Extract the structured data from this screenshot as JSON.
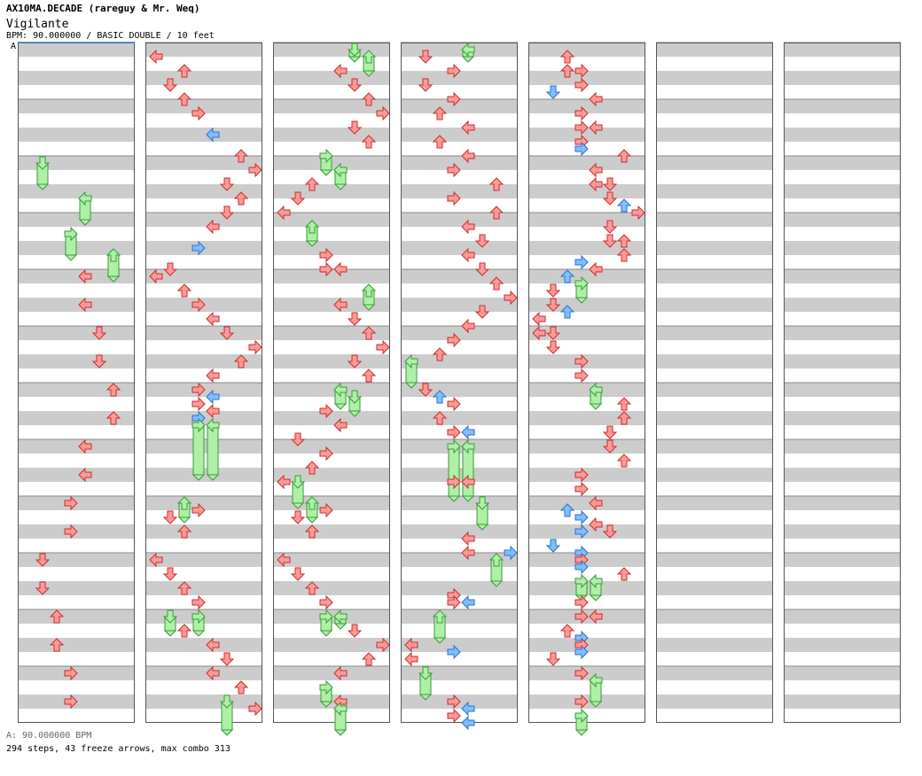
{
  "header": {
    "artist_line": "AX10MA.DECADE (rareguy & Mr. Weq)",
    "title": "Vigilante",
    "meta": "BPM: 90.000000 / BASIC DOUBLE / 10 feet"
  },
  "bpm_marker": {
    "label": "A"
  },
  "footer": {
    "bpm": "A: 90.000000 BPM",
    "stats": "294 steps, 43 freeze arrows, max combo 313"
  },
  "colors": {
    "tap": "#ff9a9a",
    "tap_stroke": "#cc2b2b",
    "blue": "#7fbfff",
    "blue_stroke": "#2b6fcc",
    "freeze": "#aef0a6",
    "freeze_stroke": "#3a9a3a",
    "pink": "#f6b8f0",
    "stripe": "#cccccc"
  },
  "chart_data": {
    "type": "step-chart",
    "mode": "BASIC DOUBLE",
    "columns": 7,
    "measures_per_column": 12,
    "lanes": [
      "P1-left",
      "P1-down",
      "P1-up",
      "P1-right",
      "P2-left",
      "P2-down",
      "P2-up",
      "P2-right"
    ],
    "notes": [
      {
        "c": 0,
        "b": 8,
        "l": 1,
        "t": "freeze",
        "len": 1.5
      },
      {
        "c": 0,
        "b": 10.5,
        "l": 4,
        "t": "freeze",
        "len": 1.5
      },
      {
        "c": 0,
        "b": 13,
        "l": 3,
        "t": "freeze",
        "len": 1.5
      },
      {
        "c": 0,
        "b": 14.5,
        "l": 6,
        "t": "freeze",
        "len": 1.5
      },
      {
        "c": 0,
        "b": 16,
        "l": 4
      },
      {
        "c": 0,
        "b": 18,
        "l": 4
      },
      {
        "c": 0,
        "b": 20,
        "l": 5
      },
      {
        "c": 0,
        "b": 22,
        "l": 5
      },
      {
        "c": 0,
        "b": 24,
        "l": 6
      },
      {
        "c": 0,
        "b": 26,
        "l": 6
      },
      {
        "c": 0,
        "b": 28,
        "l": 4
      },
      {
        "c": 0,
        "b": 30,
        "l": 4
      },
      {
        "c": 0,
        "b": 32,
        "l": 3
      },
      {
        "c": 0,
        "b": 34,
        "l": 3
      },
      {
        "c": 0,
        "b": 36,
        "l": 1
      },
      {
        "c": 0,
        "b": 38,
        "l": 1
      },
      {
        "c": 0,
        "b": 40,
        "l": 2
      },
      {
        "c": 0,
        "b": 42,
        "l": 2
      },
      {
        "c": 0,
        "b": 44,
        "l": 3
      },
      {
        "c": 0,
        "b": 46,
        "l": 3
      },
      {
        "c": 1,
        "b": 0.5,
        "l": 0
      },
      {
        "c": 1,
        "b": 1.5,
        "l": 2
      },
      {
        "c": 1,
        "b": 2.5,
        "l": 1
      },
      {
        "c": 1,
        "b": 3.5,
        "l": 2
      },
      {
        "c": 1,
        "b": 4.5,
        "l": 3
      },
      {
        "c": 1,
        "b": 6,
        "l": 4,
        "t": "blue"
      },
      {
        "c": 1,
        "b": 7.5,
        "l": 6
      },
      {
        "c": 1,
        "b": 8.5,
        "l": 7
      },
      {
        "c": 1,
        "b": 9.5,
        "l": 5
      },
      {
        "c": 1,
        "b": 10.5,
        "l": 6
      },
      {
        "c": 1,
        "b": 11.5,
        "l": 5
      },
      {
        "c": 1,
        "b": 12.5,
        "l": 4
      },
      {
        "c": 1,
        "b": 14,
        "l": 3,
        "t": "blue"
      },
      {
        "c": 1,
        "b": 15.5,
        "l": 1
      },
      {
        "c": 1,
        "b": 16,
        "l": 0
      },
      {
        "c": 1,
        "b": 17,
        "l": 2
      },
      {
        "c": 1,
        "b": 18,
        "l": 3
      },
      {
        "c": 1,
        "b": 19,
        "l": 4
      },
      {
        "c": 1,
        "b": 20,
        "l": 5
      },
      {
        "c": 1,
        "b": 21,
        "l": 7
      },
      {
        "c": 1,
        "b": 22,
        "l": 6
      },
      {
        "c": 1,
        "b": 23,
        "l": 4
      },
      {
        "c": 1,
        "b": 24,
        "l": 3
      },
      {
        "c": 1,
        "b": 24.5,
        "l": 4,
        "t": "blue"
      },
      {
        "c": 1,
        "b": 25,
        "l": 3
      },
      {
        "c": 1,
        "b": 25.5,
        "l": 4
      },
      {
        "c": 1,
        "b": 26,
        "l": 3,
        "t": "blue"
      },
      {
        "c": 1,
        "b": 26.5,
        "l": 3,
        "t": "freeze",
        "len": 3.5
      },
      {
        "c": 1,
        "b": 26.5,
        "l": 4,
        "t": "freeze",
        "len": 3.5
      },
      {
        "c": 1,
        "b": 32,
        "l": 2,
        "t": "freeze",
        "len": 1.0
      },
      {
        "c": 1,
        "b": 32.5,
        "l": 3
      },
      {
        "c": 1,
        "b": 33,
        "l": 1
      },
      {
        "c": 1,
        "b": 34,
        "l": 2
      },
      {
        "c": 1,
        "b": 36,
        "l": 0
      },
      {
        "c": 1,
        "b": 37,
        "l": 1
      },
      {
        "c": 1,
        "b": 38,
        "l": 2
      },
      {
        "c": 1,
        "b": 39,
        "l": 3
      },
      {
        "c": 1,
        "b": 40,
        "l": 1,
        "t": "freeze",
        "len": 1.0
      },
      {
        "c": 1,
        "b": 40,
        "l": 3,
        "t": "freeze",
        "len": 1.0
      },
      {
        "c": 1,
        "b": 41,
        "l": 2
      },
      {
        "c": 1,
        "b": 42,
        "l": 4
      },
      {
        "c": 1,
        "b": 43,
        "l": 5
      },
      {
        "c": 1,
        "b": 44,
        "l": 4
      },
      {
        "c": 1,
        "b": 45,
        "l": 6
      },
      {
        "c": 1,
        "b": 46,
        "l": 5,
        "t": "freeze",
        "len": 2
      },
      {
        "c": 1,
        "b": 46.5,
        "l": 7
      },
      {
        "c": 2,
        "b": 0,
        "l": 5,
        "t": "freeze",
        "len": 0.5
      },
      {
        "c": 2,
        "b": 0.5,
        "l": 6,
        "t": "freeze",
        "len": 1.0
      },
      {
        "c": 2,
        "b": 1.5,
        "l": 4
      },
      {
        "c": 2,
        "b": 2.5,
        "l": 5
      },
      {
        "c": 2,
        "b": 3.5,
        "l": 6
      },
      {
        "c": 2,
        "b": 4.5,
        "l": 7
      },
      {
        "c": 2,
        "b": 5.5,
        "l": 5
      },
      {
        "c": 2,
        "b": 6.5,
        "l": 6
      },
      {
        "c": 2,
        "b": 7.5,
        "l": 3,
        "t": "freeze",
        "len": 1.0
      },
      {
        "c": 2,
        "b": 8.5,
        "l": 4,
        "t": "freeze",
        "len": 1.0
      },
      {
        "c": 2,
        "b": 9.5,
        "l": 2
      },
      {
        "c": 2,
        "b": 10.5,
        "l": 1
      },
      {
        "c": 2,
        "b": 11.5,
        "l": 0
      },
      {
        "c": 2,
        "b": 12.5,
        "l": 2,
        "t": "freeze",
        "len": 1.0
      },
      {
        "c": 2,
        "b": 14.5,
        "l": 3
      },
      {
        "c": 2,
        "b": 15.5,
        "l": 3
      },
      {
        "c": 2,
        "b": 15.5,
        "l": 4
      },
      {
        "c": 2,
        "b": 17,
        "l": 6,
        "t": "freeze",
        "len": 1.0
      },
      {
        "c": 2,
        "b": 18,
        "l": 4
      },
      {
        "c": 2,
        "b": 19,
        "l": 5
      },
      {
        "c": 2,
        "b": 20,
        "l": 6
      },
      {
        "c": 2,
        "b": 21,
        "l": 7
      },
      {
        "c": 2,
        "b": 22,
        "l": 5
      },
      {
        "c": 2,
        "b": 23,
        "l": 6
      },
      {
        "c": 2,
        "b": 24,
        "l": 4,
        "t": "freeze",
        "len": 1.0
      },
      {
        "c": 2,
        "b": 24.5,
        "l": 5,
        "t": "freeze",
        "len": 1.0
      },
      {
        "c": 2,
        "b": 25.5,
        "l": 3
      },
      {
        "c": 2,
        "b": 26.5,
        "l": 4
      },
      {
        "c": 2,
        "b": 27.5,
        "l": 1
      },
      {
        "c": 2,
        "b": 28.5,
        "l": 3
      },
      {
        "c": 2,
        "b": 29.5,
        "l": 2
      },
      {
        "c": 2,
        "b": 30.5,
        "l": 1,
        "t": "freeze",
        "len": 1.5
      },
      {
        "c": 2,
        "b": 30.5,
        "l": 0
      },
      {
        "c": 2,
        "b": 32,
        "l": 2,
        "t": "freeze",
        "len": 1.0
      },
      {
        "c": 2,
        "b": 32.5,
        "l": 3
      },
      {
        "c": 2,
        "b": 33,
        "l": 1
      },
      {
        "c": 2,
        "b": 34,
        "l": 2
      },
      {
        "c": 2,
        "b": 36,
        "l": 0
      },
      {
        "c": 2,
        "b": 37,
        "l": 1
      },
      {
        "c": 2,
        "b": 38,
        "l": 2
      },
      {
        "c": 2,
        "b": 39,
        "l": 3
      },
      {
        "c": 2,
        "b": 40,
        "l": 3,
        "t": "freeze",
        "len": 1.0
      },
      {
        "c": 2,
        "b": 40,
        "l": 4,
        "t": "freeze",
        "len": 0.5
      },
      {
        "c": 2,
        "b": 41,
        "l": 5
      },
      {
        "c": 2,
        "b": 42,
        "l": 7
      },
      {
        "c": 2,
        "b": 43,
        "l": 6
      },
      {
        "c": 2,
        "b": 44,
        "l": 4
      },
      {
        "c": 2,
        "b": 45,
        "l": 3,
        "t": "freeze",
        "len": 1.0
      },
      {
        "c": 2,
        "b": 46,
        "l": 4
      },
      {
        "c": 2,
        "b": 46.5,
        "l": 4,
        "t": "freeze",
        "len": 1.5
      },
      {
        "c": 3,
        "b": 0.5,
        "l": 1
      },
      {
        "c": 3,
        "b": 0,
        "l": 4,
        "t": "freeze",
        "len": 0.5
      },
      {
        "c": 3,
        "b": 1.5,
        "l": 3
      },
      {
        "c": 3,
        "b": 2.5,
        "l": 1
      },
      {
        "c": 3,
        "b": 3.5,
        "l": 3
      },
      {
        "c": 3,
        "b": 4.5,
        "l": 2
      },
      {
        "c": 3,
        "b": 5.5,
        "l": 4
      },
      {
        "c": 3,
        "b": 6.5,
        "l": 2
      },
      {
        "c": 3,
        "b": 7.5,
        "l": 4
      },
      {
        "c": 3,
        "b": 8.5,
        "l": 3
      },
      {
        "c": 3,
        "b": 9.5,
        "l": 6
      },
      {
        "c": 3,
        "b": 10.5,
        "l": 3
      },
      {
        "c": 3,
        "b": 11.5,
        "l": 6
      },
      {
        "c": 3,
        "b": 12.5,
        "l": 4
      },
      {
        "c": 3,
        "b": 13.5,
        "l": 5
      },
      {
        "c": 3,
        "b": 14.5,
        "l": 4
      },
      {
        "c": 3,
        "b": 15.5,
        "l": 5
      },
      {
        "c": 3,
        "b": 16.5,
        "l": 6
      },
      {
        "c": 3,
        "b": 17.5,
        "l": 7
      },
      {
        "c": 3,
        "b": 18.5,
        "l": 5
      },
      {
        "c": 3,
        "b": 19.5,
        "l": 4
      },
      {
        "c": 3,
        "b": 20.5,
        "l": 3
      },
      {
        "c": 3,
        "b": 21.5,
        "l": 2
      },
      {
        "c": 3,
        "b": 22,
        "l": 0,
        "t": "freeze",
        "len": 1.5
      },
      {
        "c": 3,
        "b": 24,
        "l": 1
      },
      {
        "c": 3,
        "b": 24.5,
        "l": 2,
        "t": "blue"
      },
      {
        "c": 3,
        "b": 25,
        "l": 3
      },
      {
        "c": 3,
        "b": 26,
        "l": 2
      },
      {
        "c": 3,
        "b": 27,
        "l": 3
      },
      {
        "c": 3,
        "b": 27,
        "l": 4,
        "t": "blue"
      },
      {
        "c": 3,
        "b": 28,
        "l": 4
      },
      {
        "c": 3,
        "b": 28,
        "l": 3,
        "t": "freeze",
        "len": 3.5
      },
      {
        "c": 3,
        "b": 28,
        "l": 4,
        "t": "freeze",
        "len": 3.5
      },
      {
        "c": 3,
        "b": 30.5,
        "l": 3
      },
      {
        "c": 3,
        "b": 30.5,
        "l": 4
      },
      {
        "c": 3,
        "b": 32,
        "l": 5,
        "t": "freeze",
        "len": 1.5
      },
      {
        "c": 3,
        "b": 34.5,
        "l": 4
      },
      {
        "c": 3,
        "b": 35.5,
        "l": 4
      },
      {
        "c": 3,
        "b": 35.5,
        "l": 7,
        "t": "blue"
      },
      {
        "c": 3,
        "b": 36,
        "l": 6,
        "t": "freeze",
        "len": 1.5
      },
      {
        "c": 3,
        "b": 38.5,
        "l": 3
      },
      {
        "c": 3,
        "b": 39,
        "l": 3
      },
      {
        "c": 3,
        "b": 39,
        "l": 4,
        "t": "blue"
      },
      {
        "c": 3,
        "b": 40,
        "l": 2,
        "t": "freeze",
        "len": 1.5
      },
      {
        "c": 3,
        "b": 42,
        "l": 0
      },
      {
        "c": 3,
        "b": 43,
        "l": 0
      },
      {
        "c": 3,
        "b": 42.5,
        "l": 3,
        "t": "blue"
      },
      {
        "c": 3,
        "b": 44,
        "l": 1,
        "t": "freeze",
        "len": 1.5
      },
      {
        "c": 3,
        "b": 46,
        "l": 3
      },
      {
        "c": 3,
        "b": 46.5,
        "l": 4,
        "t": "blue"
      },
      {
        "c": 3,
        "b": 47,
        "l": 3
      },
      {
        "c": 3,
        "b": 47.5,
        "l": 4,
        "t": "blue"
      },
      {
        "c": 4,
        "b": 0.5,
        "l": 2
      },
      {
        "c": 4,
        "b": 1.5,
        "l": 2
      },
      {
        "c": 4,
        "b": 1.5,
        "l": 3
      },
      {
        "c": 4,
        "b": 2.5,
        "l": 3
      },
      {
        "c": 4,
        "b": 3,
        "l": 1,
        "t": "blue"
      },
      {
        "c": 4,
        "b": 3.5,
        "l": 4
      },
      {
        "c": 4,
        "b": 4.5,
        "l": 3
      },
      {
        "c": 4,
        "b": 5.5,
        "l": 3
      },
      {
        "c": 4,
        "b": 5.5,
        "l": 4
      },
      {
        "c": 4,
        "b": 6.5,
        "l": 3
      },
      {
        "c": 4,
        "b": 7,
        "l": 3,
        "t": "blue"
      },
      {
        "c": 4,
        "b": 7.5,
        "l": 6
      },
      {
        "c": 4,
        "b": 8.5,
        "l": 4
      },
      {
        "c": 4,
        "b": 9.5,
        "l": 4
      },
      {
        "c": 4,
        "b": 9.5,
        "l": 5
      },
      {
        "c": 4,
        "b": 10.5,
        "l": 5
      },
      {
        "c": 4,
        "b": 11,
        "l": 6,
        "t": "blue"
      },
      {
        "c": 4,
        "b": 11.5,
        "l": 7
      },
      {
        "c": 4,
        "b": 12.5,
        "l": 5
      },
      {
        "c": 4,
        "b": 13.5,
        "l": 5
      },
      {
        "c": 4,
        "b": 13.5,
        "l": 6
      },
      {
        "c": 4,
        "b": 14.5,
        "l": 6
      },
      {
        "c": 4,
        "b": 15,
        "l": 3,
        "t": "blue"
      },
      {
        "c": 4,
        "b": 15.5,
        "l": 4
      },
      {
        "c": 4,
        "b": 16,
        "l": 2,
        "t": "blue"
      },
      {
        "c": 4,
        "b": 16.5,
        "l": 3,
        "t": "freeze",
        "len": 1.0
      },
      {
        "c": 4,
        "b": 17,
        "l": 1
      },
      {
        "c": 4,
        "b": 18,
        "l": 1
      },
      {
        "c": 4,
        "b": 18.5,
        "l": 2,
        "t": "blue"
      },
      {
        "c": 4,
        "b": 19,
        "l": 0
      },
      {
        "c": 4,
        "b": 20,
        "l": 0
      },
      {
        "c": 4,
        "b": 20,
        "l": 1
      },
      {
        "c": 4,
        "b": 21,
        "l": 1
      },
      {
        "c": 4,
        "b": 22,
        "l": 3
      },
      {
        "c": 4,
        "b": 23,
        "l": 3
      },
      {
        "c": 4,
        "b": 24,
        "l": 4,
        "t": "freeze",
        "len": 1.0
      },
      {
        "c": 4,
        "b": 25,
        "l": 6
      },
      {
        "c": 4,
        "b": 26,
        "l": 6
      },
      {
        "c": 4,
        "b": 27,
        "l": 5
      },
      {
        "c": 4,
        "b": 28,
        "l": 5
      },
      {
        "c": 4,
        "b": 29,
        "l": 6
      },
      {
        "c": 4,
        "b": 30,
        "l": 3
      },
      {
        "c": 4,
        "b": 31,
        "l": 3
      },
      {
        "c": 4,
        "b": 32,
        "l": 4
      },
      {
        "c": 4,
        "b": 32.5,
        "l": 2,
        "t": "blue"
      },
      {
        "c": 4,
        "b": 33,
        "l": 3,
        "t": "blue"
      },
      {
        "c": 4,
        "b": 33.5,
        "l": 4
      },
      {
        "c": 4,
        "b": 34,
        "l": 3,
        "t": "blue"
      },
      {
        "c": 4,
        "b": 34,
        "l": 5
      },
      {
        "c": 4,
        "b": 35,
        "l": 1,
        "t": "blue"
      },
      {
        "c": 4,
        "b": 35.5,
        "l": 3,
        "t": "blue"
      },
      {
        "c": 4,
        "b": 36,
        "l": 3
      },
      {
        "c": 4,
        "b": 36.5,
        "l": 3,
        "t": "blue"
      },
      {
        "c": 4,
        "b": 37,
        "l": 6
      },
      {
        "c": 4,
        "b": 37.5,
        "l": 3,
        "t": "freeze",
        "len": 1.0
      },
      {
        "c": 4,
        "b": 37.5,
        "l": 4,
        "t": "freeze",
        "len": 1.0
      },
      {
        "c": 4,
        "b": 39,
        "l": 3
      },
      {
        "c": 4,
        "b": 40,
        "l": 3
      },
      {
        "c": 4,
        "b": 40,
        "l": 4
      },
      {
        "c": 4,
        "b": 41,
        "l": 2
      },
      {
        "c": 4,
        "b": 41.5,
        "l": 3,
        "t": "blue"
      },
      {
        "c": 4,
        "b": 42,
        "l": 3
      },
      {
        "c": 4,
        "b": 42.5,
        "l": 3,
        "t": "blue"
      },
      {
        "c": 4,
        "b": 43,
        "l": 1
      },
      {
        "c": 4,
        "b": 44,
        "l": 3
      },
      {
        "c": 4,
        "b": 44.5,
        "l": 4,
        "t": "freeze",
        "len": 1.5
      },
      {
        "c": 4,
        "b": 46,
        "l": 3
      },
      {
        "c": 4,
        "b": 47,
        "l": 3,
        "t": "freeze",
        "len": 1
      }
    ]
  }
}
